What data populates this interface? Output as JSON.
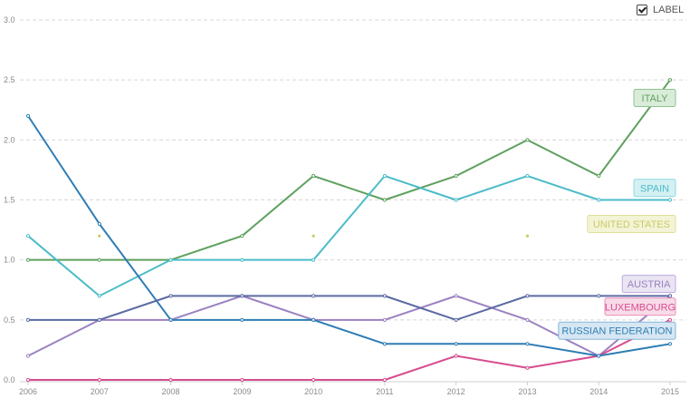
{
  "toggle": {
    "label": "LABEL",
    "checked": true
  },
  "chart_data": {
    "type": "line",
    "x": [
      "2006",
      "2007",
      "2008",
      "2009",
      "2010",
      "2011",
      "2012",
      "2013",
      "2014",
      "2015"
    ],
    "yticks": [
      "0.0",
      "0.5",
      "1.0",
      "1.5",
      "2.0",
      "2.5",
      "3.0"
    ],
    "ylim": [
      0,
      3
    ],
    "grid": true,
    "series": [
      {
        "name": "ITALY",
        "color": "#5fa05f",
        "label_bg": "#d9ecd9",
        "label_border": "#8fc28f",
        "values": [
          1.0,
          1.0,
          1.0,
          1.2,
          1.7,
          1.5,
          1.7,
          2.0,
          1.7,
          2.5
        ],
        "label_value": 2.35
      },
      {
        "name": "SPAIN",
        "color": "#4bbcc8",
        "label_bg": "#d3f0f3",
        "label_border": "#8fd8e0",
        "values": [
          1.2,
          0.7,
          1.0,
          1.0,
          1.0,
          1.7,
          1.5,
          1.7,
          1.5,
          1.5
        ],
        "label_value": 1.6
      },
      {
        "name": "UNITED STATES",
        "color": "#c9cc66",
        "label_bg": "#f3f3d6",
        "label_border": "#dcdf9a",
        "values": [
          null,
          1.2,
          null,
          null,
          1.2,
          null,
          null,
          1.2,
          null,
          null
        ],
        "label_value": 1.3,
        "points_only": true
      },
      {
        "name": "AUSTRIA",
        "color": "#9b82c1",
        "label_bg": "#ebe5f3",
        "label_border": "#bda9dc",
        "values": [
          0.2,
          0.5,
          0.5,
          0.7,
          0.5,
          0.5,
          0.7,
          0.5,
          0.2,
          0.7
        ],
        "label_value": 0.8
      },
      {
        "name": "LUXEMBOURG",
        "color": "#d84c8f",
        "label_bg": "#f8dbe8",
        "label_border": "#e890b9",
        "values": [
          0.0,
          0.0,
          0.0,
          0.0,
          0.0,
          0.0,
          0.2,
          0.1,
          0.2,
          0.5
        ],
        "label_value": 0.61
      },
      {
        "name": "RUSSIAN FEDERATION",
        "color": "#2e7db5",
        "label_bg": "#d6e7f3",
        "label_border": "#86b6d9",
        "values": [
          2.2,
          1.3,
          0.5,
          0.5,
          0.5,
          0.3,
          0.3,
          0.3,
          0.2,
          0.3
        ],
        "label_value": 0.41
      },
      {
        "name": "",
        "color": "#5b6aa3",
        "values": [
          0.5,
          0.5,
          0.7,
          0.7,
          0.7,
          0.7,
          0.5,
          0.7,
          0.7,
          0.7
        ],
        "label_value": null
      }
    ]
  }
}
